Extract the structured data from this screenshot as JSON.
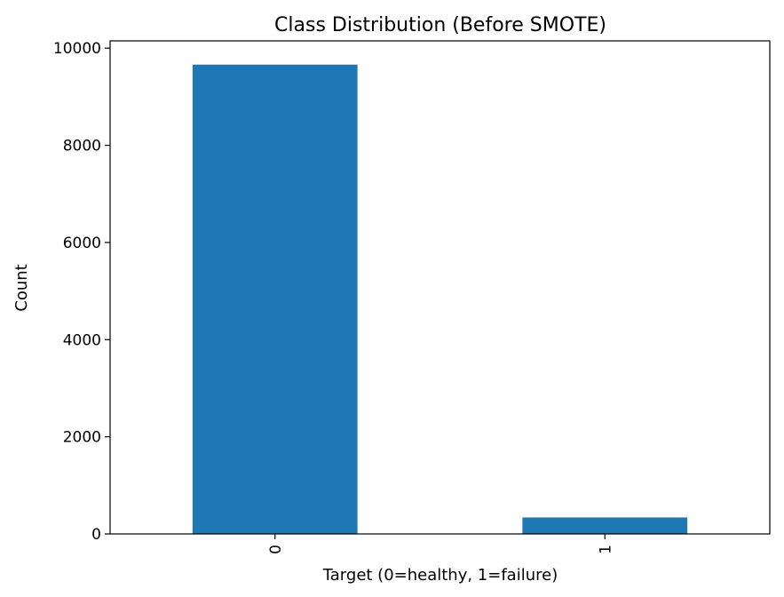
{
  "chart_data": {
    "type": "bar",
    "title": "Class Distribution (Before SMOTE)",
    "xlabel": "Target (0=healthy, 1=failure)",
    "ylabel": "Count",
    "categories": [
      "0",
      "1"
    ],
    "values": [
      9661,
      339
    ],
    "ylim": [
      0,
      10150
    ],
    "yticks": [
      0,
      2000,
      4000,
      6000,
      8000,
      10000
    ],
    "grid": false,
    "legend": "none",
    "bar_color": "#1f77b4"
  }
}
